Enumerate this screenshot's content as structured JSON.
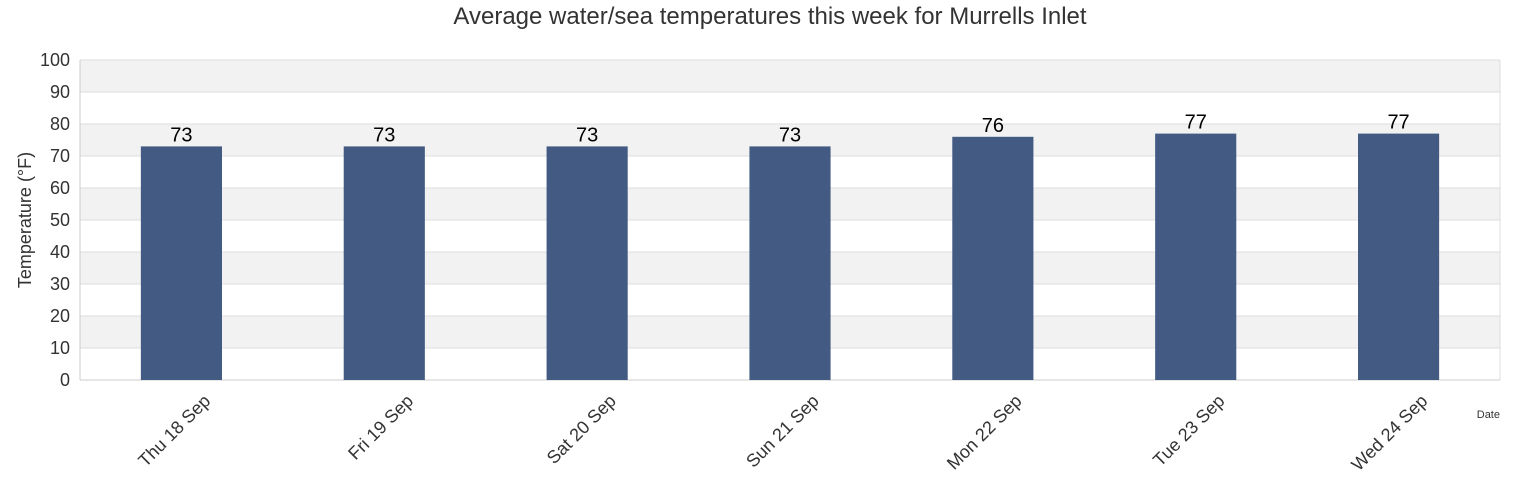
{
  "chart_data": {
    "type": "bar",
    "title": "Average water/sea temperatures this week for Murrells Inlet",
    "xlabel": "Date",
    "ylabel": "Temperature (°F)",
    "categories": [
      "Thu 18 Sep",
      "Fri 19 Sep",
      "Sat 20 Sep",
      "Sun 21 Sep",
      "Mon 22 Sep",
      "Tue 23 Sep",
      "Wed 24 Sep"
    ],
    "values": [
      73,
      73,
      73,
      73,
      76,
      77,
      77
    ],
    "data_labels": [
      "73",
      "73",
      "73",
      "73",
      "76",
      "77",
      "77"
    ],
    "ylim": [
      0,
      100
    ],
    "yticks": [
      0,
      10,
      20,
      30,
      40,
      50,
      60,
      70,
      80,
      90,
      100
    ],
    "grid": true,
    "legend": "none",
    "colors": {
      "bar": "#435b83",
      "band": "#f2f2f2",
      "gridline": "#dddddd",
      "axis": "#cccccc"
    }
  }
}
